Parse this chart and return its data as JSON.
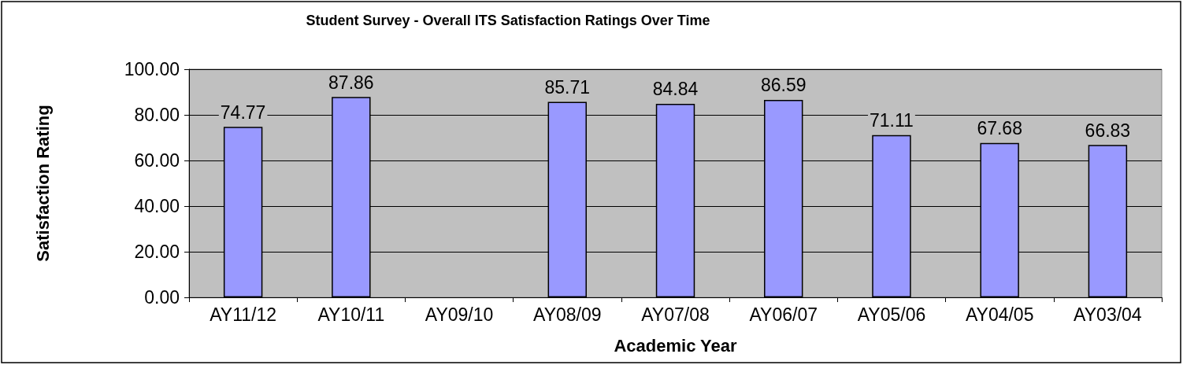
{
  "chart_data": {
    "type": "bar",
    "title": "Student Survey - Overall ITS Satisfaction Ratings Over Time",
    "xlabel": "Academic Year",
    "ylabel": "Satisfaction Rating",
    "categories": [
      "AY11/12",
      "AY10/11",
      "AY09/10",
      "AY08/09",
      "AY07/08",
      "AY06/07",
      "AY05/06",
      "AY04/05",
      "AY03/04"
    ],
    "values": [
      74.77,
      87.86,
      null,
      85.71,
      84.84,
      86.59,
      71.11,
      67.68,
      66.83
    ],
    "color": "#9999ff",
    "ylim": [
      0,
      100
    ],
    "yticks": [
      {
        "value": 0,
        "label": "0.00"
      },
      {
        "value": 20,
        "label": "20.00"
      },
      {
        "value": 40,
        "label": "40.00"
      },
      {
        "value": 60,
        "label": "60.00"
      },
      {
        "value": 80,
        "label": "80.00"
      },
      {
        "value": 100,
        "label": "100.00"
      }
    ],
    "grid": "y",
    "data_labels": true
  }
}
